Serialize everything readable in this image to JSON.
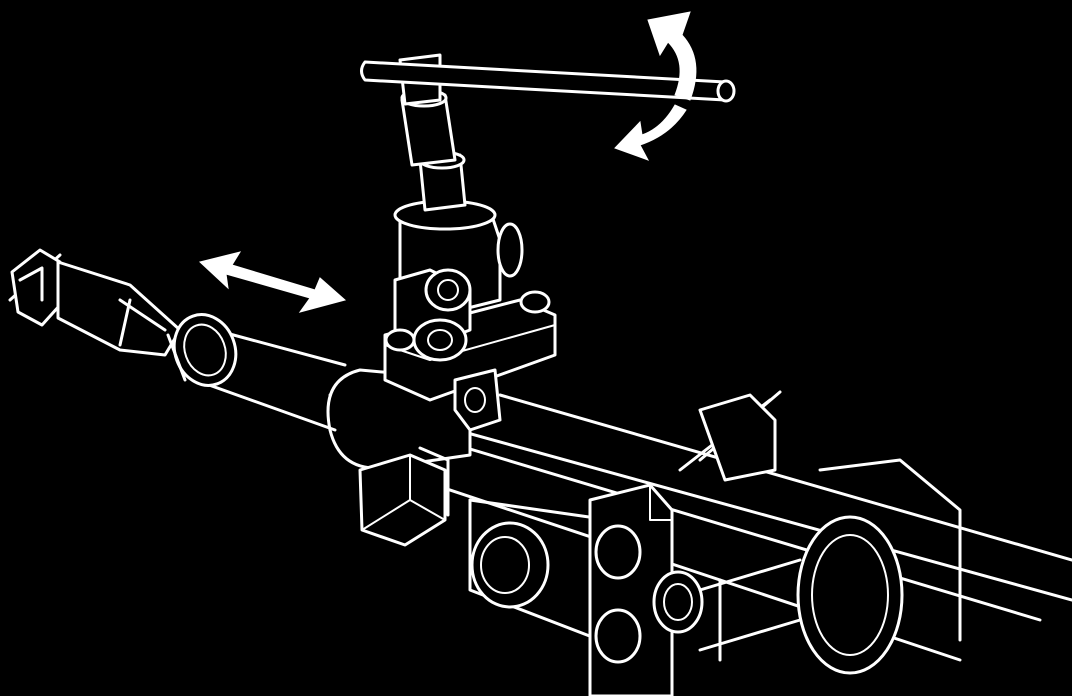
{
  "figure": {
    "background": "#000000",
    "line_color": "#ffffff",
    "depicts": [
      "steering-rack-housing",
      "tie-rod-end",
      "pinion-valve-housing",
      "socket-wrench-handle",
      "rotation-arrow",
      "axial-play-arrow",
      "rack-holding-tool"
    ]
  }
}
